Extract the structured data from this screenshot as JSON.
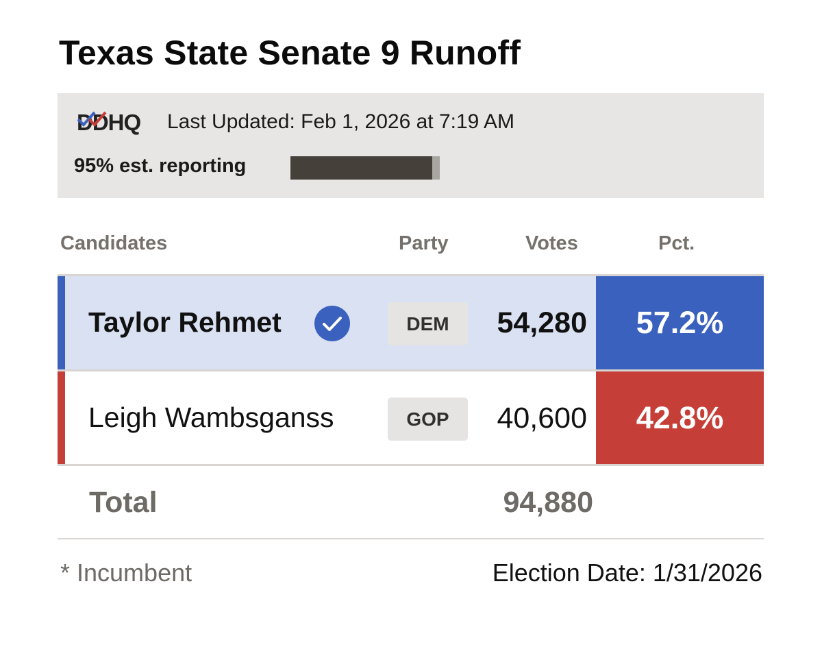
{
  "title": "Texas State Senate 9 Runoff",
  "info": {
    "logo_text": "DDHQ",
    "last_updated": "Last Updated: Feb 1, 2026 at 7:19 AM",
    "reporting_label": "95% est. reporting",
    "reporting_fraction": 0.95
  },
  "columns": {
    "candidates": "Candidates",
    "party": "Party",
    "votes": "Votes",
    "pct": "Pct."
  },
  "candidates": [
    {
      "name": "Taylor Rehmet",
      "winner": true,
      "party": "DEM",
      "votes": "54,280",
      "pct": "57.2%",
      "party_color": "#3a61be",
      "row_bg": "#d9e1f2"
    },
    {
      "name": "Leigh Wambsganss",
      "winner": false,
      "party": "GOP",
      "votes": "40,600",
      "pct": "42.8%",
      "party_color": "#c53f38",
      "row_bg": "#ffffff"
    }
  ],
  "total": {
    "label": "Total",
    "votes": "94,880"
  },
  "footer": {
    "incumbent_note": "* Incumbent",
    "election_date": "Election Date: 1/31/2026"
  },
  "icons": {
    "winner": "check-circle-icon",
    "logo": "ddhq-logo-icon"
  }
}
